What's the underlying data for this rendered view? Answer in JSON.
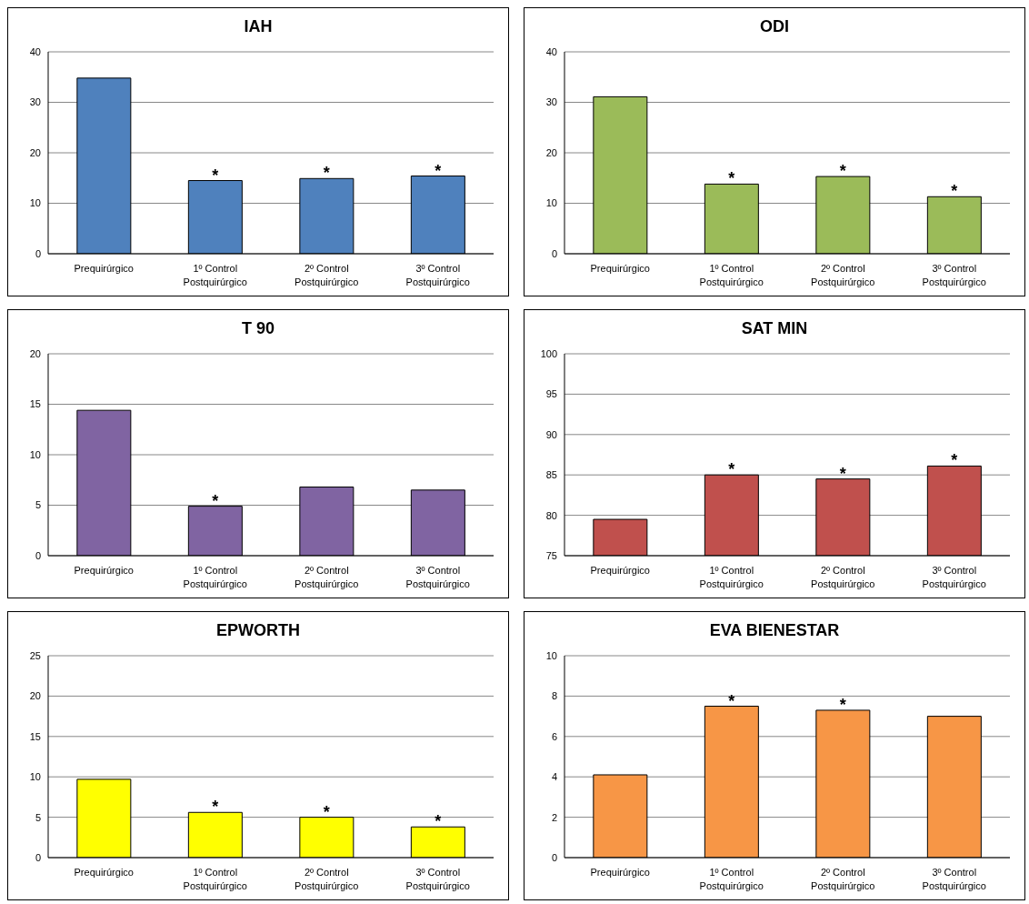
{
  "chart_data": [
    {
      "type": "bar",
      "title": "IAH",
      "categories": [
        "Prequirúrgico",
        "1º Control Postquirúrgico",
        "2º Control Postquirúrgico",
        "3º Control Postquirúrgico"
      ],
      "values": [
        34.8,
        14.5,
        14.9,
        15.4
      ],
      "color": "#4f81bd",
      "ylim": [
        0,
        40
      ],
      "yticks": [
        0,
        10,
        20,
        30,
        40
      ],
      "grid": "y",
      "annotations": [
        {
          "text": "*",
          "x": "1º Control Postquirúrgico",
          "y": 14.5
        },
        {
          "text": "*",
          "x": "2º Control Postquirúrgico",
          "y": 14.9
        },
        {
          "text": "*",
          "x": "3º Control Postquirúrgico",
          "y": 15.4
        }
      ]
    },
    {
      "type": "bar",
      "title": "ODI",
      "categories": [
        "Prequirúrgico",
        "1º Control Postquirúrgico",
        "2º Control Postquirúrgico",
        "3º Control Postquirúrgico"
      ],
      "values": [
        31.1,
        13.8,
        15.3,
        11.3
      ],
      "color": "#9bbb59",
      "ylim": [
        0,
        40
      ],
      "yticks": [
        0,
        10,
        20,
        30,
        40
      ],
      "grid": "y",
      "annotations": [
        {
          "text": "*",
          "x": "1º Control Postquirúrgico",
          "y": 13.8
        },
        {
          "text": "*",
          "x": "2º Control Postquirúrgico",
          "y": 15.3
        },
        {
          "text": "*",
          "x": "3º Control Postquirúrgico",
          "y": 11.3
        }
      ]
    },
    {
      "type": "bar",
      "title": "T 90",
      "categories": [
        "Prequirúrgico",
        "1º Control Postquirúrgico",
        "2º Control Postquirúrgico",
        "3º Control Postquirúrgico"
      ],
      "values": [
        14.4,
        4.9,
        6.8,
        6.5
      ],
      "color": "#8064a2",
      "ylim": [
        0,
        20
      ],
      "yticks": [
        0,
        5,
        10,
        15,
        20
      ],
      "grid": "y",
      "annotations": [
        {
          "text": "*",
          "x": "1º Control Postquirúrgico",
          "y": 4.9
        }
      ]
    },
    {
      "type": "bar",
      "title": "SAT MIN",
      "categories": [
        "Prequirúrgico",
        "1º Control Postquirúrgico",
        "2º Control Postquirúrgico",
        "3º Control Postquirúrgico"
      ],
      "values": [
        79.5,
        85.0,
        84.5,
        86.1
      ],
      "color": "#c0504d",
      "ylim": [
        75,
        100
      ],
      "yticks": [
        75,
        80,
        85,
        90,
        95,
        100
      ],
      "grid": "y",
      "annotations": [
        {
          "text": "*",
          "x": "1º Control Postquirúrgico",
          "y": 85.0
        },
        {
          "text": "*",
          "x": "2º Control Postquirúrgico",
          "y": 84.5
        },
        {
          "text": "*",
          "x": "3º Control Postquirúrgico",
          "y": 86.1
        }
      ]
    },
    {
      "type": "bar",
      "title": "EPWORTH",
      "categories": [
        "Prequirúrgico",
        "1º Control Postquirúrgico",
        "2º Control Postquirúrgico",
        "3º Control Postquirúrgico"
      ],
      "values": [
        9.7,
        5.6,
        5.0,
        3.8
      ],
      "color": "#ffff00",
      "ylim": [
        0,
        25
      ],
      "yticks": [
        0,
        5,
        10,
        15,
        20,
        25
      ],
      "grid": "y",
      "annotations": [
        {
          "text": "*",
          "x": "1º Control Postquirúrgico",
          "y": 5.6
        },
        {
          "text": "*",
          "x": "2º Control Postquirúrgico",
          "y": 5.0
        },
        {
          "text": "*",
          "x": "3º Control Postquirúrgico",
          "y": 3.8
        }
      ]
    },
    {
      "type": "bar",
      "title": "EVA BIENESTAR",
      "categories": [
        "Prequirúrgico",
        "1º Control Postquirúrgico",
        "2º Control Postquirúrgico",
        "3º Control Postquirúrgico"
      ],
      "values": [
        4.1,
        7.5,
        7.3,
        7.0
      ],
      "color": "#f79646",
      "ylim": [
        0,
        10
      ],
      "yticks": [
        0,
        2,
        4,
        6,
        8,
        10
      ],
      "grid": "y",
      "annotations": [
        {
          "text": "*",
          "x": "1º Control Postquirúrgico",
          "y": 7.5
        },
        {
          "text": "*",
          "x": "2º Control Postquirúrgico",
          "y": 7.3
        }
      ]
    }
  ]
}
